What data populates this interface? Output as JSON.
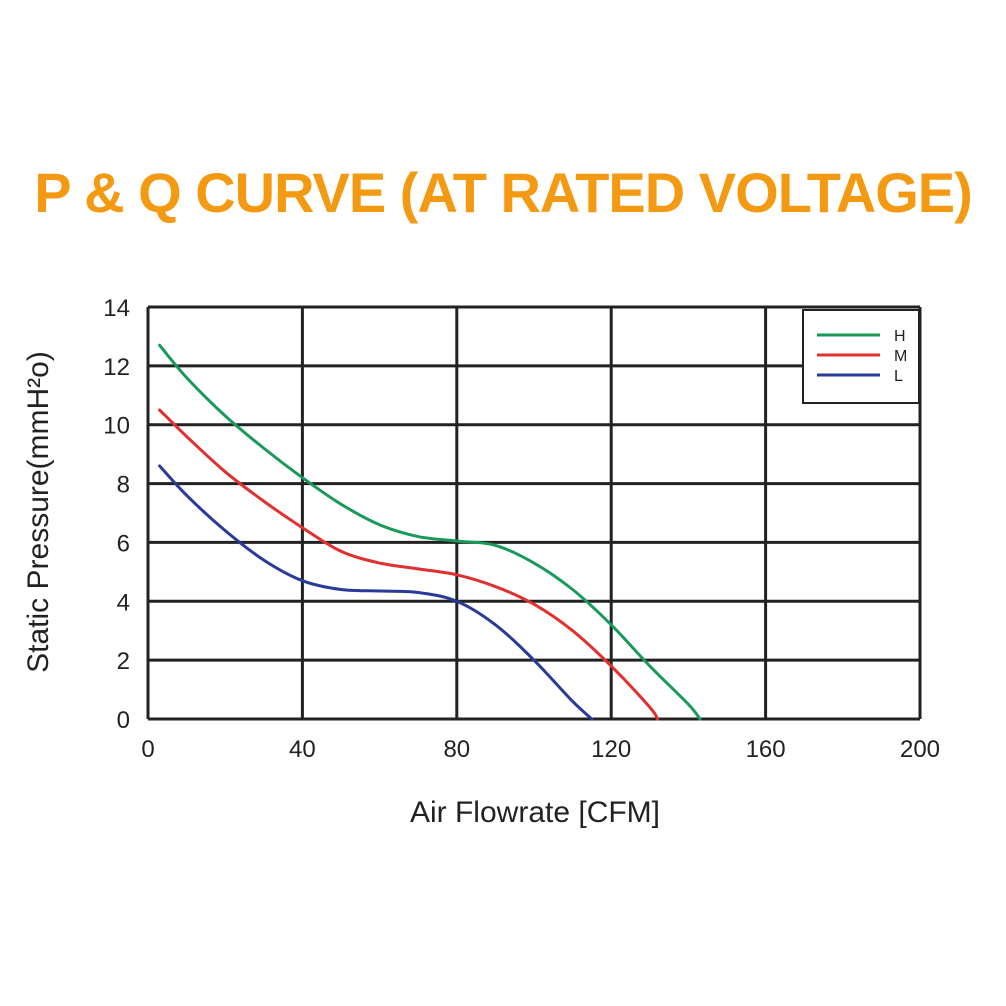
{
  "chart_data": {
    "type": "line",
    "title": "P & Q CURVE (AT RATED VOLTAGE)",
    "xlabel": "Air  Flowrate   [CFM]",
    "ylabel": "Static Pressure(mmH²o)",
    "xlim": [
      0,
      200
    ],
    "ylim": [
      0,
      14
    ],
    "xticks": [
      "0",
      "40",
      "80",
      "120",
      "160",
      "200"
    ],
    "yticks": [
      "0",
      "2",
      "4",
      "6",
      "8",
      "10",
      "12",
      "14"
    ],
    "grid": true,
    "legend_position": "top-right",
    "series": [
      {
        "name": "H",
        "color": "#1a9a5a",
        "x": [
          3,
          10,
          20,
          30,
          40,
          50,
          60,
          70,
          80,
          90,
          100,
          110,
          120,
          130,
          140,
          143
        ],
        "y": [
          12.7,
          11.6,
          10.3,
          9.2,
          8.2,
          7.3,
          6.6,
          6.2,
          6.05,
          5.9,
          5.3,
          4.4,
          3.2,
          1.8,
          0.5,
          0
        ]
      },
      {
        "name": "M",
        "color": "#e03030",
        "x": [
          3,
          10,
          20,
          30,
          40,
          50,
          60,
          70,
          80,
          90,
          100,
          110,
          120,
          130,
          132
        ],
        "y": [
          10.5,
          9.6,
          8.4,
          7.4,
          6.5,
          5.7,
          5.3,
          5.1,
          4.9,
          4.5,
          3.9,
          3.0,
          1.8,
          0.4,
          0
        ]
      },
      {
        "name": "L",
        "color": "#2a3a9a",
        "x": [
          3,
          10,
          20,
          30,
          40,
          50,
          60,
          70,
          80,
          90,
          100,
          110,
          115
        ],
        "y": [
          8.6,
          7.6,
          6.4,
          5.4,
          4.7,
          4.4,
          4.35,
          4.3,
          4.0,
          3.2,
          2.0,
          0.6,
          0
        ]
      }
    ]
  }
}
